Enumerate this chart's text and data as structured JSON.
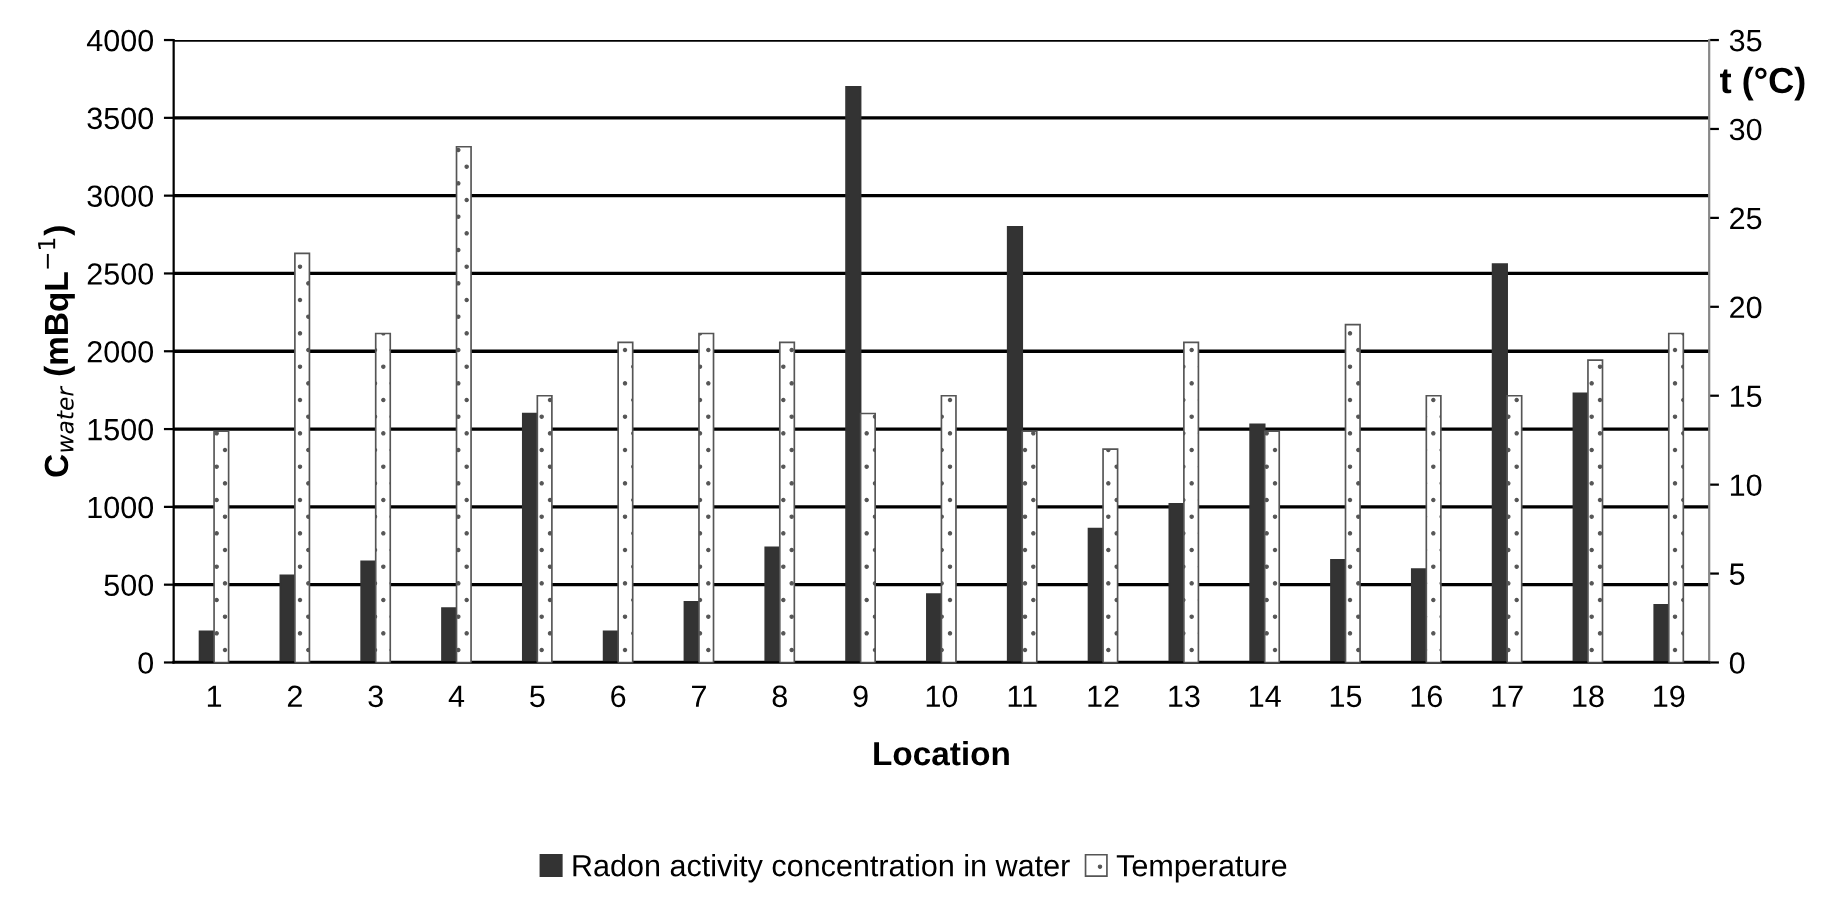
{
  "chart_data": {
    "type": "bar",
    "categories": [
      "1",
      "2",
      "3",
      "4",
      "5",
      "6",
      "7",
      "8",
      "9",
      "10",
      "11",
      "12",
      "13",
      "14",
      "15",
      "16",
      "17",
      "18",
      "19"
    ],
    "series": [
      {
        "name": "Radon activity concentration in water",
        "color": "#333333",
        "values": [
          200,
          560,
          650,
          350,
          1600,
          200,
          390,
          740,
          3700,
          440,
          2800,
          860,
          1020,
          1530,
          660,
          600,
          2560,
          1730,
          370
        ]
      },
      {
        "name": "Temperature",
        "color": "#555555",
        "axis": "y2",
        "values": [
          13,
          23,
          18.5,
          29,
          15,
          18,
          18.5,
          18,
          14,
          15,
          13,
          12,
          18,
          13,
          19,
          15,
          15,
          17,
          18.5
        ]
      }
    ],
    "xlabel": "Location",
    "ylabel": "C$_{water}$ (mBqL$^{−1}$)",
    "y2label": "t (°C)",
    "ylim": [
      0,
      4000
    ],
    "yticks": [
      0,
      500,
      1000,
      1500,
      2000,
      2500,
      3000,
      3500,
      4000
    ],
    "y2lim": [
      0,
      35
    ],
    "y2ticks": [
      0,
      5,
      10,
      15,
      20,
      25,
      30,
      35
    ],
    "grid": "y",
    "legend": "bottom"
  }
}
